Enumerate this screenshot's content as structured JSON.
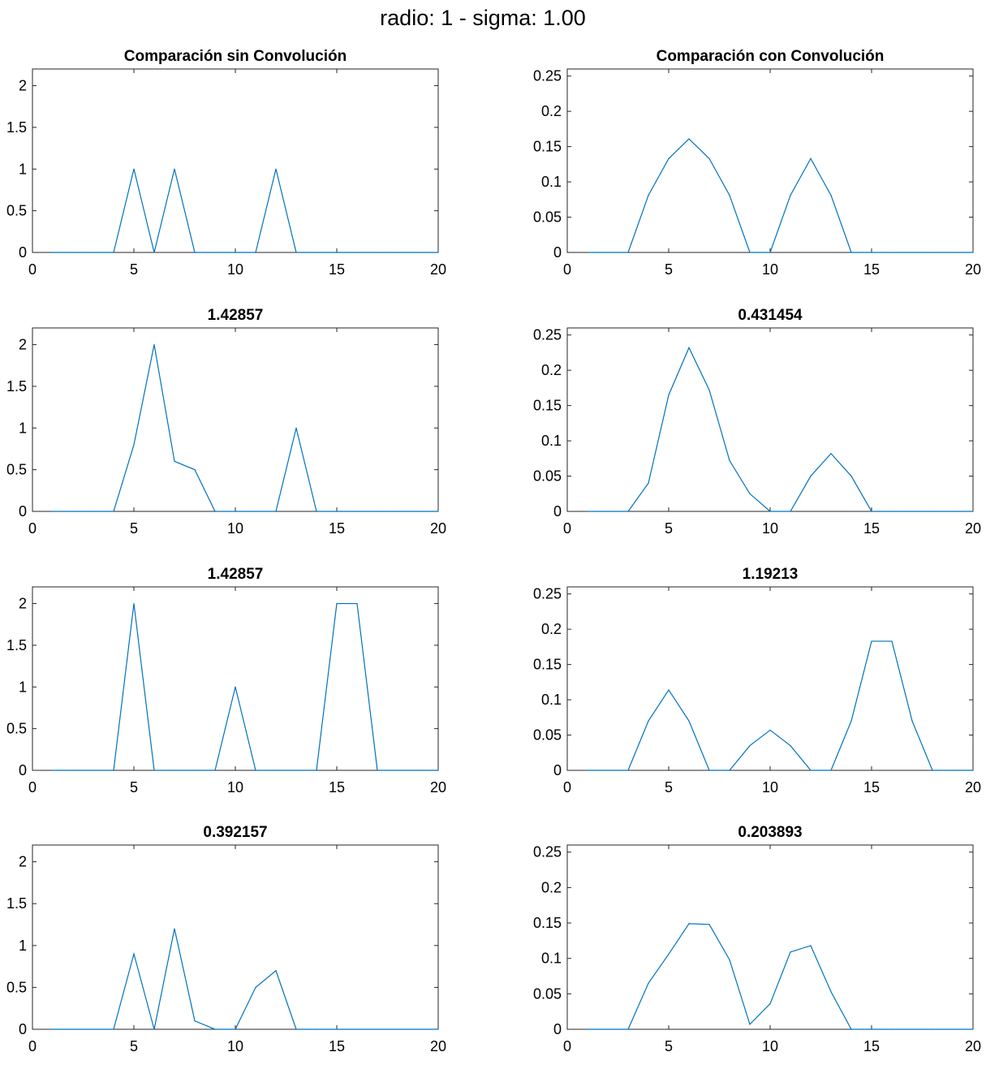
{
  "figure": {
    "title": "radio: 1 - sigma: 1.00",
    "line_color": "#0072BD"
  },
  "chart_data": [
    {
      "type": "line",
      "title": "Comparación sin Convolución",
      "xlim": [
        0,
        20
      ],
      "ylim": [
        0,
        2.2
      ],
      "xticks": [
        0,
        5,
        10,
        15,
        20
      ],
      "yticks": [
        0,
        0.5,
        1,
        1.5,
        2
      ],
      "x": [
        1,
        2,
        3,
        4,
        5,
        6,
        7,
        8,
        9,
        10,
        11,
        12,
        13,
        14,
        15,
        16,
        17,
        18,
        19,
        20
      ],
      "series": [
        {
          "values": [
            0,
            0,
            0,
            0,
            1,
            0,
            1,
            0,
            0,
            0,
            0,
            1,
            0,
            0,
            0,
            0,
            0,
            0,
            0,
            0
          ]
        }
      ]
    },
    {
      "type": "line",
      "title": "Comparación con Convolución",
      "xlim": [
        0,
        20
      ],
      "ylim": [
        0,
        0.26
      ],
      "xticks": [
        0,
        5,
        10,
        15,
        20
      ],
      "yticks": [
        0,
        0.05,
        0.1,
        0.15,
        0.2,
        0.25
      ],
      "x": [
        1,
        2,
        3,
        4,
        5,
        6,
        7,
        8,
        9,
        10,
        11,
        12,
        13,
        14,
        15,
        16,
        17,
        18,
        19,
        20
      ],
      "series": [
        {
          "values": [
            0,
            0,
            0,
            0.081,
            0.133,
            0.161,
            0.133,
            0.081,
            0,
            0,
            0.081,
            0.133,
            0.081,
            0,
            0,
            0,
            0,
            0,
            0,
            0
          ]
        }
      ]
    },
    {
      "type": "line",
      "title": "1.42857",
      "xlim": [
        0,
        20
      ],
      "ylim": [
        0,
        2.2
      ],
      "xticks": [
        0,
        5,
        10,
        15,
        20
      ],
      "yticks": [
        0,
        0.5,
        1,
        1.5,
        2
      ],
      "x": [
        1,
        2,
        3,
        4,
        5,
        6,
        7,
        8,
        9,
        10,
        11,
        12,
        13,
        14,
        15,
        16,
        17,
        18,
        19,
        20
      ],
      "series": [
        {
          "values": [
            0,
            0,
            0,
            0,
            0.8,
            2,
            0.6,
            0.5,
            0,
            0,
            0,
            0,
            1,
            0,
            0,
            0,
            0,
            0,
            0,
            0
          ]
        }
      ]
    },
    {
      "type": "line",
      "title": "0.431454",
      "xlim": [
        0,
        20
      ],
      "ylim": [
        0,
        0.26
      ],
      "xticks": [
        0,
        5,
        10,
        15,
        20
      ],
      "yticks": [
        0,
        0.05,
        0.1,
        0.15,
        0.2,
        0.25
      ],
      "x": [
        1,
        2,
        3,
        4,
        5,
        6,
        7,
        8,
        9,
        10,
        11,
        12,
        13,
        14,
        15,
        16,
        17,
        18,
        19,
        20
      ],
      "series": [
        {
          "values": [
            0,
            0,
            0,
            0.04,
            0.165,
            0.232,
            0.172,
            0.072,
            0.025,
            0,
            0,
            0.05,
            0.082,
            0.05,
            0,
            0,
            0,
            0,
            0,
            0
          ]
        }
      ]
    },
    {
      "type": "line",
      "title": "1.42857",
      "xlim": [
        0,
        20
      ],
      "ylim": [
        0,
        2.2
      ],
      "xticks": [
        0,
        5,
        10,
        15,
        20
      ],
      "yticks": [
        0,
        0.5,
        1,
        1.5,
        2
      ],
      "x": [
        1,
        2,
        3,
        4,
        5,
        6,
        7,
        8,
        9,
        10,
        11,
        12,
        13,
        14,
        15,
        16,
        17,
        18,
        19,
        20
      ],
      "series": [
        {
          "values": [
            0,
            0,
            0,
            0,
            2,
            0,
            0,
            0,
            0,
            1,
            0,
            0,
            0,
            0,
            2,
            2,
            0,
            0,
            0,
            0
          ]
        }
      ]
    },
    {
      "type": "line",
      "title": "1.19213",
      "xlim": [
        0,
        20
      ],
      "ylim": [
        0,
        0.26
      ],
      "xticks": [
        0,
        5,
        10,
        15,
        20
      ],
      "yticks": [
        0,
        0.05,
        0.1,
        0.15,
        0.2,
        0.25
      ],
      "x": [
        1,
        2,
        3,
        4,
        5,
        6,
        7,
        8,
        9,
        10,
        11,
        12,
        13,
        14,
        15,
        16,
        17,
        18,
        19,
        20
      ],
      "series": [
        {
          "values": [
            0,
            0,
            0,
            0.07,
            0.114,
            0.07,
            0,
            0,
            0.035,
            0.057,
            0.035,
            0,
            0,
            0.07,
            0.183,
            0.183,
            0.07,
            0,
            0,
            0
          ]
        }
      ]
    },
    {
      "type": "line",
      "title": "0.392157",
      "xlim": [
        0,
        20
      ],
      "ylim": [
        0,
        2.2
      ],
      "xticks": [
        0,
        5,
        10,
        15,
        20
      ],
      "yticks": [
        0,
        0.5,
        1,
        1.5,
        2
      ],
      "x": [
        1,
        2,
        3,
        4,
        5,
        6,
        7,
        8,
        9,
        10,
        11,
        12,
        13,
        14,
        15,
        16,
        17,
        18,
        19,
        20
      ],
      "series": [
        {
          "values": [
            0,
            0,
            0,
            0,
            0.9,
            0,
            1.2,
            0.1,
            0,
            0,
            0.5,
            0.7,
            0,
            0,
            0,
            0,
            0,
            0,
            0,
            0
          ]
        }
      ]
    },
    {
      "type": "line",
      "title": "0.203893",
      "xlim": [
        0,
        20
      ],
      "ylim": [
        0,
        0.26
      ],
      "xticks": [
        0,
        5,
        10,
        15,
        20
      ],
      "yticks": [
        0,
        0.05,
        0.1,
        0.15,
        0.2,
        0.25
      ],
      "x": [
        1,
        2,
        3,
        4,
        5,
        6,
        7,
        8,
        9,
        10,
        11,
        12,
        13,
        14,
        15,
        16,
        17,
        18,
        19,
        20
      ],
      "series": [
        {
          "values": [
            0,
            0,
            0,
            0.065,
            0.106,
            0.149,
            0.148,
            0.098,
            0.007,
            0.036,
            0.109,
            0.118,
            0.053,
            0,
            0,
            0,
            0,
            0,
            0,
            0
          ]
        }
      ]
    }
  ]
}
